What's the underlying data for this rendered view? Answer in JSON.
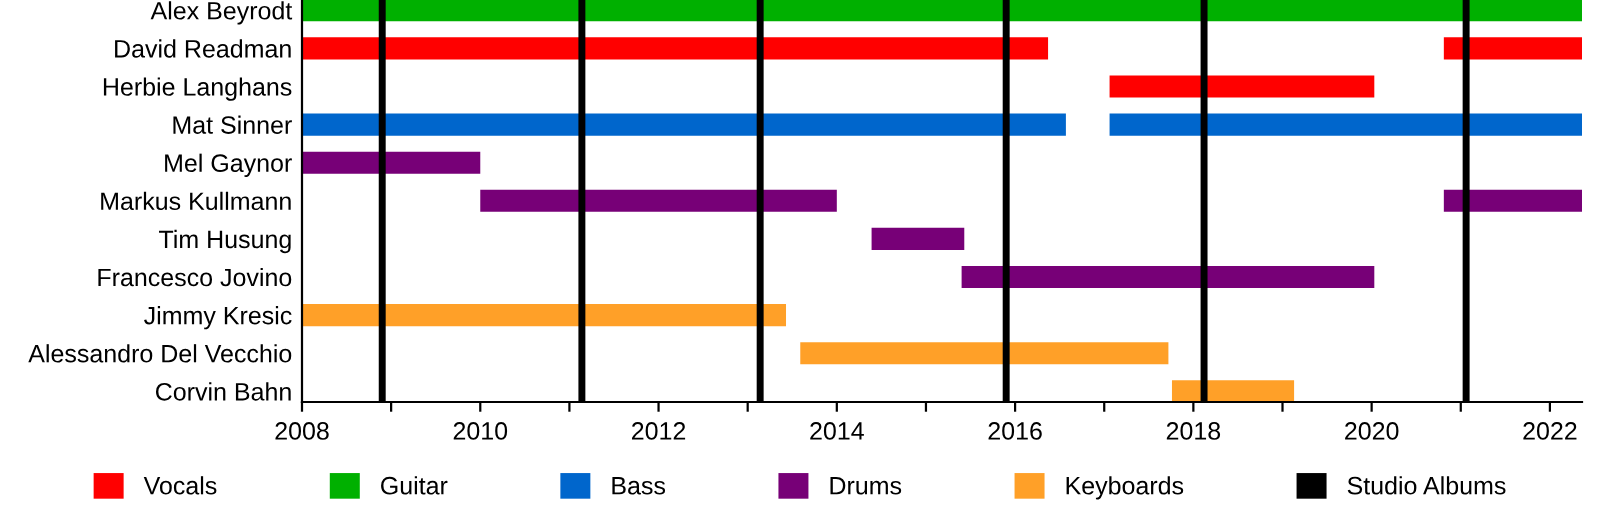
{
  "chart_data": {
    "type": "bar",
    "orientation": "horizontal",
    "categories": [
      "Alex Beyrodt",
      "David Readman",
      "Herbie Langhans",
      "Mat Sinner",
      "Mel Gaynor",
      "Markus Kullmann",
      "Tim Husung",
      "Francesco Jovino",
      "Jimmy Kresic",
      "Alessandro Del Vecchio",
      "Corvin Bahn"
    ],
    "series": [
      {
        "name": "Vocals",
        "color": "#ff0000",
        "base": [
          null,
          2008,
          2017.06,
          null,
          null,
          null,
          null,
          null,
          null,
          null,
          null
        ],
        "values": [
          null,
          8.37,
          2.97,
          null,
          null,
          null,
          null,
          null,
          null,
          null,
          null
        ]
      },
      {
        "color": "#ff0000",
        "base": [
          null,
          2020.81,
          null,
          null,
          null,
          null,
          null,
          null,
          null,
          null,
          null
        ],
        "values": [
          null,
          1.55,
          null,
          null,
          null,
          null,
          null,
          null,
          null,
          null,
          null
        ]
      },
      {
        "name": "Guitar",
        "color": "#00b000",
        "base": [
          2008,
          null,
          null,
          null,
          null,
          null,
          null,
          null,
          null,
          null,
          null
        ],
        "values": [
          14.36,
          null,
          null,
          null,
          null,
          null,
          null,
          null,
          null,
          null,
          null
        ]
      },
      {
        "name": "Bass",
        "color": "#0066cc",
        "base": [
          null,
          null,
          null,
          2008,
          null,
          null,
          null,
          null,
          null,
          null,
          null
        ],
        "values": [
          null,
          null,
          null,
          8.57,
          null,
          null,
          null,
          null,
          null,
          null,
          null
        ]
      },
      {
        "color": "#0066cc",
        "base": [
          null,
          null,
          null,
          2017.06,
          null,
          null,
          null,
          null,
          null,
          null,
          null
        ],
        "values": [
          null,
          null,
          null,
          5.3,
          null,
          null,
          null,
          null,
          null,
          null,
          null
        ]
      },
      {
        "name": "Drums",
        "color": "#770077",
        "base": [
          null,
          null,
          null,
          null,
          2008,
          2010,
          2014.39,
          2015.4,
          null,
          null,
          null
        ],
        "values": [
          null,
          null,
          null,
          null,
          2.0,
          4.0,
          1.04,
          4.63,
          null,
          null,
          null
        ]
      },
      {
        "color": "#770077",
        "base": [
          null,
          null,
          null,
          null,
          null,
          2020.81,
          null,
          null,
          null,
          null,
          null
        ],
        "values": [
          null,
          null,
          null,
          null,
          null,
          1.55,
          null,
          null,
          null,
          null,
          null
        ]
      },
      {
        "name": "Keyboards",
        "color": "#ffa028",
        "base": [
          null,
          null,
          null,
          null,
          null,
          null,
          null,
          null,
          2008,
          2013.59,
          2017.76
        ],
        "values": [
          null,
          null,
          null,
          null,
          null,
          null,
          null,
          null,
          5.43,
          4.13,
          1.37
        ]
      }
    ],
    "ref_lines": [
      {
        "axis": "x",
        "value": 2008.9,
        "label": "Studio Albums",
        "color": "#000000"
      },
      {
        "axis": "x",
        "value": 2011.14,
        "color": "#000000"
      },
      {
        "axis": "x",
        "value": 2013.14,
        "color": "#000000"
      },
      {
        "axis": "x",
        "value": 2015.9,
        "color": "#000000"
      },
      {
        "axis": "x",
        "value": 2018.12,
        "color": "#000000"
      },
      {
        "axis": "x",
        "value": 2021.06,
        "color": "#000000"
      }
    ],
    "xlim": [
      2008,
      2022.36
    ],
    "xticks": [
      2008,
      {
        "value": 2009,
        "label": null
      },
      2010,
      {
        "value": 2011,
        "label": null
      },
      2012,
      {
        "value": 2013,
        "label": null
      },
      2014,
      {
        "value": 2015,
        "label": null
      },
      2016,
      {
        "value": 2017,
        "label": null
      },
      2018,
      {
        "value": 2019,
        "label": null
      },
      2020,
      {
        "value": 2021,
        "label": null
      },
      2022
    ],
    "grid": false,
    "legend": "bottom"
  }
}
